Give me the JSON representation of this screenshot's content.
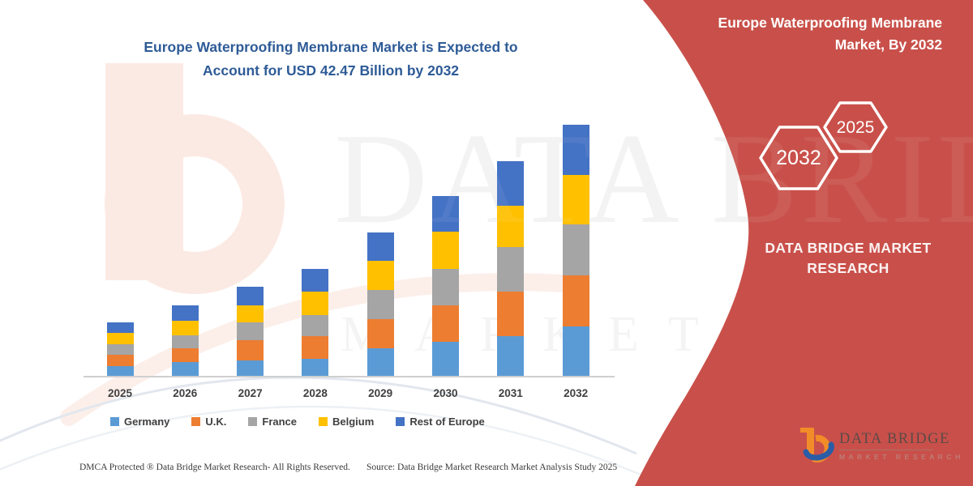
{
  "main_title": {
    "line1": "Europe Waterproofing Membrane Market is Expected to",
    "line2": "Account for USD 42.47 Billion by 2032"
  },
  "colors": {
    "panel_red": "#C9504A",
    "title_blue": "#2E5B97",
    "axis_text": "#404040"
  },
  "chart_data": {
    "type": "bar",
    "stacked": true,
    "unit": "USD Billion",
    "categories": [
      "2025",
      "2026",
      "2027",
      "2028",
      "2029",
      "2030",
      "2031",
      "2032"
    ],
    "series": [
      {
        "name": "Germany",
        "color": "#5B9BD5",
        "values": [
          1.8,
          2.5,
          2.8,
          3.0,
          4.8,
          5.9,
          6.9,
          8.5
        ]
      },
      {
        "name": "U.K.",
        "color": "#ED7D31",
        "values": [
          1.9,
          2.3,
          3.3,
          3.9,
          4.9,
          6.1,
          7.5,
          8.6
        ]
      },
      {
        "name": "France",
        "color": "#A5A5A5",
        "values": [
          1.8,
          2.2,
          3.0,
          3.5,
          4.9,
          6.2,
          7.4,
          8.6
        ]
      },
      {
        "name": "Belgium",
        "color": "#FFC000",
        "values": [
          1.9,
          2.5,
          2.9,
          4.0,
          4.9,
          6.3,
          7.0,
          8.3
        ]
      },
      {
        "name": "Rest of Europe",
        "color": "#4472C4",
        "values": [
          1.8,
          2.6,
          3.1,
          3.8,
          4.8,
          5.9,
          7.5,
          8.5
        ]
      }
    ],
    "title": "Europe Waterproofing Membrane Market is Expected to Account for USD 42.47 Billion by 2032",
    "xlabel": "",
    "ylabel": "",
    "y_axis_visible": false,
    "gridlines": false,
    "legend_position": "bottom",
    "total_2032": 42.47
  },
  "right_panel": {
    "title": "Europe Waterproofing Membrane Market, By 2032",
    "hexagons": [
      {
        "label": "2032"
      },
      {
        "label": "2025"
      }
    ],
    "brand": {
      "line1": "DATA BRIDGE MARKET",
      "line2": "RESEARCH"
    }
  },
  "watermark": {
    "line1": "DATA BRIDGE",
    "line2": "MARKET RESEARCH"
  },
  "logo": {
    "name": "DATA BRIDGE",
    "subtitle": "MARKET RESEARCH"
  },
  "footer": {
    "left": "DMCA Protected ® Data Bridge Market Research-  All Rights Reserved.",
    "source": "Source: Data Bridge Market Research  Market Analysis Study 2025"
  }
}
